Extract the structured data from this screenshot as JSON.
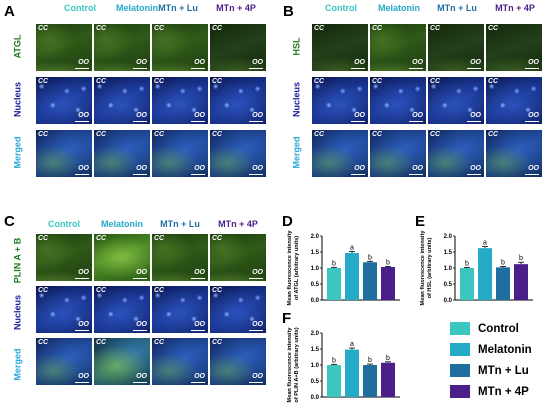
{
  "panels": {
    "A": {
      "letter": "A",
      "rows": [
        "ATGL",
        "Nucleus",
        "Merged"
      ]
    },
    "B": {
      "letter": "B",
      "rows": [
        "HSL",
        "Nucleus",
        "Merged"
      ]
    },
    "C": {
      "letter": "C",
      "rows": [
        "PLIN A + B",
        "Nucleus",
        "Merged"
      ]
    },
    "D": {
      "letter": "D"
    },
    "E": {
      "letter": "E"
    },
    "F": {
      "letter": "F"
    }
  },
  "columns": [
    "Control",
    "Melatonin",
    "MTn + Lu",
    "MTn + 4P"
  ],
  "tile_labels": {
    "cc": "CC",
    "oo": "OO"
  },
  "colors": {
    "control": "#3cc6c0",
    "melatonin": "#25aac8",
    "mtn_lu": "#1e6fa0",
    "mtn_4p": "#4a1f8a",
    "green_label": "#1f7a1f",
    "blue_label": "#1a1a9c",
    "merged_label": "#29a8d8"
  },
  "legend": [
    "Control",
    "Melatonin",
    "MTn + Lu",
    "MTn + 4P"
  ],
  "chart_data": [
    {
      "panel": "D",
      "type": "bar",
      "categories": [
        "Control",
        "Melatonin",
        "MTn + Lu",
        "MTn + 4P"
      ],
      "values": [
        1.0,
        1.47,
        1.18,
        1.03
      ],
      "errors": [
        0.02,
        0.05,
        0.03,
        0.02
      ],
      "labels": [
        "b",
        "a",
        "b",
        "b"
      ],
      "ylabel_lines": [
        "Mean fluorescence intensity",
        "of ATGL (arbitrary units)"
      ],
      "ylim": [
        0.0,
        2.0
      ],
      "yticks": [
        "0.0",
        "0.5",
        "1.0",
        "1.5",
        "2.0"
      ]
    },
    {
      "panel": "E",
      "type": "bar",
      "categories": [
        "Control",
        "Melatonin",
        "MTn + Lu",
        "MTn + 4P"
      ],
      "values": [
        1.0,
        1.62,
        1.02,
        1.12
      ],
      "errors": [
        0.02,
        0.05,
        0.03,
        0.06
      ],
      "labels": [
        "b",
        "a",
        "b",
        "b"
      ],
      "ylabel_lines": [
        "Mean fluorescence intensity",
        "of HSL (arbitrary units)"
      ],
      "ylim": [
        0.0,
        2.0
      ],
      "yticks": [
        "0.0",
        "0.5",
        "1.0",
        "1.5",
        "2.0"
      ]
    },
    {
      "panel": "F",
      "type": "bar",
      "categories": [
        "Control",
        "Melatonin",
        "MTn + Lu",
        "MTn + 4P"
      ],
      "values": [
        1.0,
        1.48,
        1.0,
        1.07
      ],
      "errors": [
        0.02,
        0.05,
        0.03,
        0.03
      ],
      "labels": [
        "b",
        "a",
        "b",
        "b"
      ],
      "ylabel_lines": [
        "Mean fluorescence intensity",
        "of PLIN A+B (arbitrary units)"
      ],
      "ylim": [
        0.0,
        2.0
      ],
      "yticks": [
        "0.0",
        "0.5",
        "1.0",
        "1.5",
        "2.0"
      ]
    }
  ]
}
